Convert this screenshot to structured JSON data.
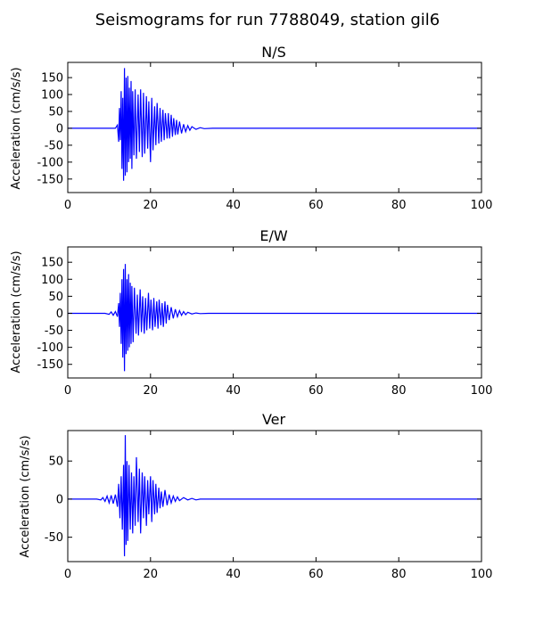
{
  "figure": {
    "title": "Seismograms for run 7788049, station gil6"
  },
  "chart_data": [
    {
      "type": "line",
      "title": "N/S",
      "xlabel": "",
      "ylabel": "Acceleration (cm/s/s)",
      "xlim": [
        0,
        100
      ],
      "ylim": [
        -190,
        195
      ],
      "xticks": [
        0,
        20,
        40,
        60,
        80,
        100
      ],
      "yticks": [
        -150,
        -100,
        -50,
        0,
        50,
        100,
        150
      ],
      "grid": false,
      "color": "#0000ff",
      "series": [
        {
          "x": [
            0,
            11.5,
            12.0,
            12.3,
            12.5,
            12.7,
            12.9,
            13.1,
            13.3,
            13.5,
            13.7,
            13.9,
            14.1,
            14.3,
            14.5,
            14.7,
            14.9,
            15.1,
            15.3,
            15.5,
            15.7,
            16.0,
            16.3,
            16.6,
            17.0,
            17.3,
            17.6,
            18.0,
            18.3,
            18.6,
            19.0,
            19.3,
            19.6,
            20.0,
            20.3,
            20.6,
            21.0,
            21.3,
            21.6,
            22.0,
            22.3,
            22.6,
            23.0,
            23.3,
            23.6,
            24.0,
            24.3,
            24.6,
            25.0,
            25.3,
            25.6,
            26.0,
            26.3,
            26.6,
            27.0,
            27.5,
            28.0,
            28.5,
            29.0,
            29.5,
            30.0,
            31.0,
            32.0,
            33.0,
            35.0,
            100
          ],
          "y": [
            0,
            0,
            10,
            -40,
            60,
            -35,
            110,
            -120,
            90,
            -155,
            178,
            -140,
            150,
            -130,
            155,
            -100,
            120,
            -90,
            140,
            -120,
            110,
            -80,
            115,
            -90,
            100,
            -70,
            115,
            -85,
            105,
            -75,
            95,
            -60,
            80,
            -100,
            90,
            -65,
            65,
            -50,
            75,
            -45,
            60,
            -40,
            55,
            -35,
            45,
            -30,
            45,
            -30,
            40,
            -25,
            30,
            -20,
            25,
            -18,
            20,
            -15,
            12,
            -10,
            8,
            -6,
            5,
            -3,
            2,
            -1,
            0,
            0
          ]
        }
      ]
    },
    {
      "type": "line",
      "title": "E/W",
      "xlabel": "",
      "ylabel": "Acceleration (cm/s/s)",
      "xlim": [
        0,
        100
      ],
      "ylim": [
        -190,
        195
      ],
      "xticks": [
        0,
        20,
        40,
        60,
        80,
        100
      ],
      "yticks": [
        -150,
        -100,
        -50,
        0,
        50,
        100,
        150
      ],
      "grid": false,
      "color": "#0000ff",
      "series": [
        {
          "x": [
            0,
            9.0,
            10.0,
            10.5,
            11.0,
            11.5,
            12.0,
            12.3,
            12.5,
            12.7,
            12.9,
            13.1,
            13.3,
            13.5,
            13.7,
            13.9,
            14.1,
            14.3,
            14.5,
            14.7,
            14.9,
            15.1,
            15.3,
            15.5,
            15.8,
            16.1,
            16.5,
            16.8,
            17.1,
            17.5,
            17.8,
            18.1,
            18.5,
            18.8,
            19.1,
            19.5,
            19.8,
            20.1,
            20.5,
            20.8,
            21.1,
            21.5,
            21.8,
            22.1,
            22.5,
            22.8,
            23.1,
            23.5,
            23.8,
            24.1,
            24.5,
            25.0,
            25.5,
            26.0,
            26.5,
            27.0,
            27.5,
            28.0,
            28.5,
            29.0,
            30.0,
            31.0,
            32.0,
            34.0,
            100
          ],
          "y": [
            0,
            0,
            -3,
            4,
            -6,
            5,
            -10,
            30,
            -40,
            60,
            -90,
            100,
            -130,
            130,
            -170,
            145,
            -120,
            100,
            -110,
            115,
            -100,
            90,
            -90,
            80,
            -85,
            75,
            -60,
            55,
            -65,
            70,
            -55,
            50,
            -60,
            45,
            -50,
            60,
            -45,
            40,
            -50,
            45,
            -40,
            35,
            -45,
            40,
            -35,
            30,
            -40,
            35,
            -30,
            25,
            -20,
            18,
            -15,
            12,
            -10,
            8,
            -6,
            5,
            -4,
            3,
            -2,
            1,
            -1,
            0,
            0
          ]
        }
      ]
    },
    {
      "type": "line",
      "title": "Ver",
      "xlabel": "",
      "ylabel": "Acceleration (cm/s/s)",
      "xlim": [
        0,
        100
      ],
      "ylim": [
        -82,
        90
      ],
      "xticks": [
        0,
        20,
        40,
        60,
        80,
        100
      ],
      "yticks": [
        -50,
        0,
        50
      ],
      "grid": false,
      "color": "#0000ff",
      "series": [
        {
          "x": [
            0,
            7.0,
            8.0,
            8.5,
            9.0,
            9.5,
            10.0,
            10.5,
            11.0,
            11.5,
            12.0,
            12.3,
            12.6,
            12.9,
            13.2,
            13.5,
            13.7,
            13.9,
            14.1,
            14.3,
            14.5,
            14.8,
            15.1,
            15.4,
            15.7,
            16.0,
            16.3,
            16.6,
            17.0,
            17.3,
            17.6,
            18.0,
            18.3,
            18.6,
            19.0,
            19.3,
            19.6,
            20.0,
            20.3,
            20.6,
            21.0,
            21.3,
            21.6,
            22.0,
            22.3,
            22.6,
            23.0,
            23.5,
            24.0,
            24.5,
            25.0,
            25.5,
            26.0,
            26.5,
            27.0,
            28.0,
            29.0,
            30.0,
            31.0,
            32.0,
            34.0,
            100
          ],
          "y": [
            0,
            0,
            -1,
            2,
            -3,
            4,
            -5,
            5,
            -6,
            6,
            -10,
            20,
            -25,
            30,
            -40,
            45,
            -75,
            84,
            -60,
            50,
            -55,
            45,
            -40,
            35,
            -45,
            30,
            -35,
            55,
            -30,
            40,
            -45,
            35,
            -25,
            30,
            -35,
            25,
            -20,
            30,
            -30,
            25,
            -20,
            20,
            -18,
            15,
            -12,
            10,
            -10,
            12,
            -8,
            6,
            -5,
            4,
            -3,
            3,
            -2,
            2,
            -1,
            1,
            -1,
            0,
            0,
            0
          ]
        }
      ]
    }
  ]
}
